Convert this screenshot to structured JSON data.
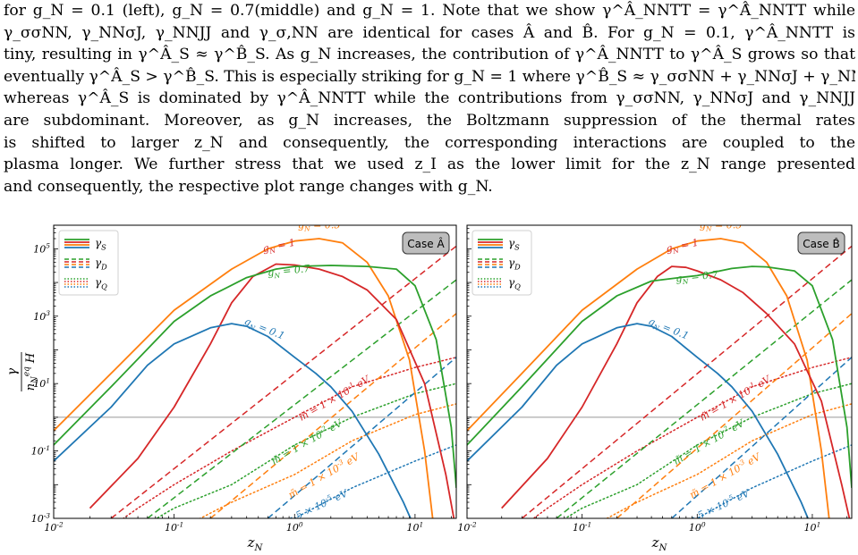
{
  "text": {
    "lines": [
      "for g_N = 0.1 (left), g_N = 0.7(middle) and g_N = 1. Note that we show γ^Â_NNTT = γ^Â̂_NNTT while",
      "γ_σσNN, γ_NNσJ, γ_NNJJ and γ_σ,NN are identical for cases Â and B̂. For g_N = 0.1, γ^Â_NNTT is",
      "tiny, resulting in γ^Â_S ≈ γ^B̂_S. As g_N increases, the contribution of γ^Â_NNTT to γ^Â_S grows so that",
      "eventually γ^Â_S > γ^B̂_S. This is especially striking for g_N = 1 where γ^B̂_S ≈ γ_σσNN + γ_NNσJ + γ_NNJJ",
      "whereas γ^Â_S is dominated by γ^Â_NNTT while the contributions from γ_σσNN, γ_NNσJ and γ_NNJJ",
      "are subdominant. Moreover, as g_N increases, the Boltzmann suppression of the thermal rates",
      "is shifted to larger z_N and consequently, the corresponding interactions are coupled to the",
      "plasma longer. We further stress that we used z_I as the lower limit for the z_N range presented",
      "and consequently, the respective plot range changes with g_N."
    ]
  },
  "colors": {
    "gN_0.1": "#1f77b4",
    "gN_0.5": "#ff7f0e",
    "gN_0.7": "#2ca02c",
    "gN_1": "#d62728",
    "reference": "#999999"
  },
  "chart_data": [
    {
      "type": "line",
      "panel": "left",
      "case_label": "Case Â",
      "xlabel": "z_N",
      "ylabel": "γ / (n_N^eq H)",
      "xscale": "log",
      "yscale": "log",
      "xlim": [
        0.01,
        22
      ],
      "ylim": [
        0.001,
        500000
      ],
      "xticks": [
        "10^-2",
        "10^-1",
        "10^0",
        "10^1"
      ],
      "yticks": [
        "10^-3",
        "10^-1",
        "10^1",
        "10^3",
        "10^5"
      ],
      "legend": {
        "placement": "top-left",
        "entries": [
          "γ_S",
          "γ_D",
          "γ_Q"
        ]
      },
      "reference_line_y": 1,
      "gamma_S": [
        {
          "name": "g_N = 0.5",
          "color": "#ff7f0e",
          "x": [
            0.01,
            0.03,
            0.1,
            0.3,
            0.6,
            1,
            1.6,
            2.5,
            4,
            6,
            9,
            12,
            14
          ],
          "y": [
            0.4,
            20,
            1500,
            25000,
            100000,
            170000,
            200000,
            150000,
            40000,
            4000,
            50,
            0.1,
            0.001
          ]
        },
        {
          "name": "g_N = 1",
          "color": "#d62728",
          "x": [
            0.02,
            0.05,
            0.1,
            0.2,
            0.3,
            0.45,
            0.7,
            1,
            1.6,
            2.5,
            4,
            7,
            12,
            18,
            21
          ],
          "y": [
            0.002,
            0.06,
            2,
            150,
            2500,
            15000,
            35000,
            33000,
            25000,
            15000,
            6000,
            800,
            10,
            0.02,
            0.001
          ]
        },
        {
          "name": "g_N = 0.7",
          "color": "#2ca02c",
          "x": [
            0.01,
            0.03,
            0.1,
            0.2,
            0.4,
            0.7,
            1,
            2,
            4,
            7,
            10,
            15,
            20,
            22
          ],
          "y": [
            0.15,
            8,
            700,
            4000,
            14000,
            25000,
            30000,
            32000,
            30000,
            25000,
            8000,
            200,
            0.5,
            0.008
          ]
        },
        {
          "name": "g_N = 0.1",
          "color": "#1f77b4",
          "x": [
            0.01,
            0.03,
            0.06,
            0.1,
            0.2,
            0.3,
            0.4,
            0.6,
            1,
            1.5,
            2,
            3,
            5,
            8,
            10,
            11
          ],
          "y": [
            0.05,
            2,
            35,
            150,
            450,
            600,
            500,
            250,
            60,
            20,
            8,
            1.5,
            0.08,
            0.003,
            0.0005,
            0.0002
          ]
        }
      ],
      "gamma_D": [
        {
          "name": "m̃ = 1 × 10^-1 eV",
          "color": "#d62728",
          "x": [
            0.03,
            22
          ],
          "y": [
            0.001,
            120000
          ]
        },
        {
          "name": "m̃ = 1 × 10^-2 eV",
          "color": "#2ca02c",
          "x": [
            0.06,
            22
          ],
          "y": [
            0.001,
            12000
          ]
        },
        {
          "name": "m̃ = 1 × 10^-3 eV",
          "color": "#ff7f0e",
          "x": [
            0.2,
            22
          ],
          "y": [
            0.001,
            1200
          ]
        },
        {
          "name": "m̃ = 5 × 10^-5 eV",
          "color": "#1f77b4",
          "x": [
            0.6,
            22
          ],
          "y": [
            0.001,
            60
          ]
        }
      ],
      "gamma_Q": [
        {
          "color": "#d62728",
          "x": [
            0.02,
            0.05,
            0.1,
            0.3,
            1,
            3,
            10,
            22
          ],
          "y": [
            0.0002,
            0.002,
            0.01,
            0.1,
            1,
            8,
            30,
            60
          ]
        },
        {
          "color": "#2ca02c",
          "x": [
            0.04,
            0.1,
            0.3,
            1,
            3,
            10,
            22
          ],
          "y": [
            0.0003,
            0.002,
            0.01,
            0.15,
            1,
            5,
            10
          ]
        },
        {
          "color": "#ff7f0e",
          "x": [
            0.1,
            0.3,
            1,
            3,
            10,
            22
          ],
          "y": [
            0.0004,
            0.003,
            0.02,
            0.2,
            1.2,
            2.5
          ]
        },
        {
          "color": "#1f77b4",
          "x": [
            0.5,
            1,
            3,
            10,
            22
          ],
          "y": [
            0.0003,
            0.001,
            0.008,
            0.05,
            0.15
          ]
        }
      ],
      "annotations": [
        {
          "text": "g_N = 0.5",
          "x": 1.6,
          "y": 400000,
          "color": "#ff7f0e",
          "angle": 0
        },
        {
          "text": "g_N = 1",
          "x": 0.75,
          "y": 100000,
          "color": "#d62728",
          "angle": -12
        },
        {
          "text": "g_N = 0.7",
          "x": 0.9,
          "y": 18000,
          "color": "#2ca02c",
          "angle": -6
        },
        {
          "text": "g_N = 0.1",
          "x": 0.55,
          "y": 350,
          "color": "#1f77b4",
          "angle": 22
        },
        {
          "text": "m̃ = 1 × 10^-1 eV",
          "x": 2.2,
          "y": 3,
          "color": "#d62728",
          "angle": -30
        },
        {
          "text": "m̃ = 1 × 10^-2 eV",
          "x": 1.3,
          "y": 0.15,
          "color": "#2ca02c",
          "angle": -30
        },
        {
          "text": "m̃ = 1 × 10^-3 eV",
          "x": 1.8,
          "y": 0.015,
          "color": "#ff7f0e",
          "angle": -30
        },
        {
          "text": "m̃ = 5 × 10^-5 eV",
          "x": 1.4,
          "y": 0.0015,
          "color": "#1f77b4",
          "angle": -25
        }
      ]
    },
    {
      "type": "line",
      "panel": "right",
      "case_label": "Case B̂",
      "xlabel": "z_N",
      "xscale": "log",
      "yscale": "log",
      "xlim": [
        0.01,
        22
      ],
      "ylim": [
        0.001,
        500000
      ],
      "xticks": [
        "10^-2",
        "10^-1",
        "10^0",
        "10^1"
      ],
      "legend": {
        "placement": "top-left",
        "entries": [
          "γ_S",
          "γ_D",
          "γ_Q"
        ]
      },
      "reference_line_y": 1,
      "gamma_S": [
        {
          "name": "g_N = 0.5",
          "color": "#ff7f0e",
          "x": [
            0.01,
            0.03,
            0.1,
            0.3,
            0.6,
            1,
            1.6,
            2.5,
            4,
            6,
            9,
            12,
            14
          ],
          "y": [
            0.4,
            20,
            1500,
            25000,
            100000,
            170000,
            200000,
            150000,
            40000,
            4000,
            50,
            0.1,
            0.001
          ]
        },
        {
          "name": "g_N = 1",
          "color": "#d62728",
          "x": [
            0.02,
            0.05,
            0.1,
            0.2,
            0.3,
            0.45,
            0.6,
            0.8,
            1,
            1.6,
            2.5,
            4,
            7,
            12,
            18,
            21
          ],
          "y": [
            0.002,
            0.06,
            2,
            150,
            2500,
            15000,
            30000,
            28000,
            22000,
            12000,
            5000,
            1200,
            150,
            3,
            0.01,
            0.001
          ]
        },
        {
          "name": "g_N = 0.7",
          "color": "#2ca02c",
          "x": [
            0.01,
            0.03,
            0.1,
            0.2,
            0.4,
            0.7,
            1,
            2,
            3,
            4,
            7,
            10,
            15,
            20,
            22
          ],
          "y": [
            0.15,
            8,
            700,
            4000,
            11000,
            14000,
            16000,
            26000,
            30000,
            29000,
            22000,
            8000,
            200,
            0.5,
            0.008
          ]
        },
        {
          "name": "g_N = 0.1",
          "color": "#1f77b4",
          "x": [
            0.01,
            0.03,
            0.06,
            0.1,
            0.2,
            0.3,
            0.4,
            0.6,
            1,
            1.5,
            2,
            3,
            5,
            8,
            10,
            11
          ],
          "y": [
            0.05,
            2,
            35,
            150,
            450,
            600,
            500,
            250,
            60,
            20,
            8,
            1.5,
            0.08,
            0.003,
            0.0005,
            0.0002
          ]
        }
      ],
      "gamma_D": [
        {
          "name": "m̃ = 1 × 10^-1 eV",
          "color": "#d62728",
          "x": [
            0.03,
            22
          ],
          "y": [
            0.001,
            120000
          ]
        },
        {
          "name": "m̃ = 1 × 10^-2 eV",
          "color": "#2ca02c",
          "x": [
            0.06,
            22
          ],
          "y": [
            0.001,
            12000
          ]
        },
        {
          "name": "m̃ = 1 × 10^-3 eV",
          "color": "#ff7f0e",
          "x": [
            0.2,
            22
          ],
          "y": [
            0.001,
            1200
          ]
        },
        {
          "name": "m̃ = 5 × 10^-5 eV",
          "color": "#1f77b4",
          "x": [
            0.6,
            22
          ],
          "y": [
            0.001,
            60
          ]
        }
      ],
      "gamma_Q": [
        {
          "color": "#d62728",
          "x": [
            0.02,
            0.05,
            0.1,
            0.3,
            1,
            3,
            10,
            22
          ],
          "y": [
            0.0002,
            0.002,
            0.01,
            0.1,
            1,
            8,
            30,
            60
          ]
        },
        {
          "color": "#2ca02c",
          "x": [
            0.04,
            0.1,
            0.3,
            1,
            3,
            10,
            22
          ],
          "y": [
            0.0003,
            0.002,
            0.01,
            0.15,
            1,
            5,
            10
          ]
        },
        {
          "color": "#ff7f0e",
          "x": [
            0.1,
            0.3,
            1,
            3,
            10,
            22
          ],
          "y": [
            0.0004,
            0.003,
            0.02,
            0.2,
            1.2,
            2.5
          ]
        },
        {
          "color": "#1f77b4",
          "x": [
            0.5,
            1,
            3,
            10,
            22
          ],
          "y": [
            0.0003,
            0.001,
            0.008,
            0.05,
            0.15
          ]
        }
      ],
      "annotations": [
        {
          "text": "g_N = 0.5",
          "x": 1.6,
          "y": 400000,
          "color": "#ff7f0e",
          "angle": 0
        },
        {
          "text": "g_N = 1",
          "x": 0.75,
          "y": 100000,
          "color": "#d62728",
          "angle": -12
        },
        {
          "text": "g_N = 0.7",
          "x": 1.0,
          "y": 12000,
          "color": "#2ca02c",
          "angle": -6
        },
        {
          "text": "g_N = 0.1",
          "x": 0.55,
          "y": 350,
          "color": "#1f77b4",
          "angle": 22
        },
        {
          "text": "m̃ = 1 × 10^-1 eV",
          "x": 2.2,
          "y": 3,
          "color": "#d62728",
          "angle": -30
        },
        {
          "text": "m̃ = 1 × 10^-2 eV",
          "x": 1.3,
          "y": 0.15,
          "color": "#2ca02c",
          "angle": -30
        },
        {
          "text": "m̃ = 1 × 10^-3 eV",
          "x": 1.8,
          "y": 0.015,
          "color": "#ff7f0e",
          "angle": -30
        },
        {
          "text": "m̃ = 5 × 10^-5 eV",
          "x": 1.4,
          "y": 0.0015,
          "color": "#1f77b4",
          "angle": -25
        }
      ]
    }
  ]
}
